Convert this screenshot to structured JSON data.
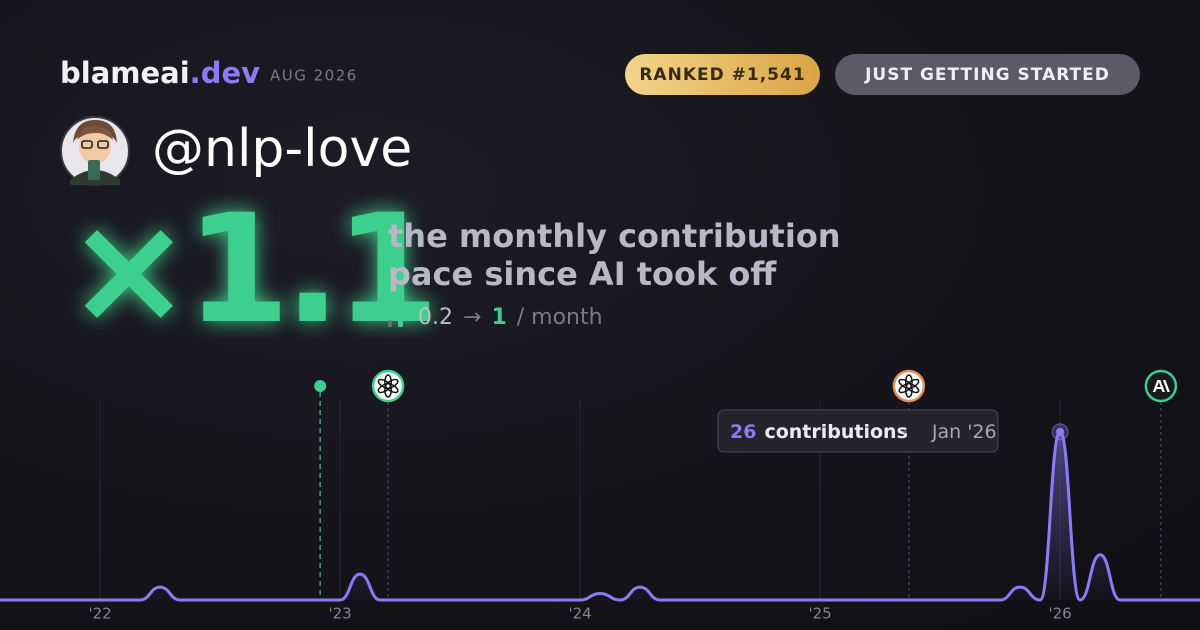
{
  "header": {
    "brand": "blameai",
    "brand_tld": ".dev",
    "period": "AUG 2026",
    "badges": [
      "RANKED #1,541",
      "JUST GETTING STARTED"
    ]
  },
  "profile": {
    "username": "@nlp-love"
  },
  "headline": {
    "multiplier": "×1.1",
    "description_lines": [
      "the monthly contribution",
      "pace since AI took off"
    ],
    "pace": {
      "from": 0.2,
      "arrow": "→",
      "to": 1,
      "unit": "/ month"
    }
  },
  "chart_data": {
    "type": "line",
    "x": [
      2021.583,
      2021.667,
      2021.75,
      2021.833,
      2021.917,
      2022,
      2022.083,
      2022.167,
      2022.25,
      2022.333,
      2022.417,
      2022.5,
      2022.583,
      2022.667,
      2022.75,
      2022.833,
      2022.917,
      2023,
      2023.083,
      2023.167,
      2023.25,
      2023.333,
      2023.417,
      2023.5,
      2023.583,
      2023.667,
      2023.75,
      2023.833,
      2023.917,
      2024,
      2024.083,
      2024.167,
      2024.25,
      2024.333,
      2024.417,
      2024.5,
      2024.583,
      2024.667,
      2024.75,
      2024.833,
      2024.917,
      2025,
      2025.083,
      2025.167,
      2025.25,
      2025.333,
      2025.417,
      2025.5,
      2025.583,
      2025.667,
      2025.75,
      2025.833,
      2025.917,
      2026,
      2026.083,
      2026.167,
      2026.25,
      2026.333,
      2026.417,
      2026.5,
      2026.583
    ],
    "series": [
      {
        "name": "contributions",
        "color": "#8b7cf6",
        "values": [
          0,
          0,
          0,
          0,
          0,
          0,
          0,
          0,
          2,
          0,
          0,
          0,
          0,
          0,
          0,
          0,
          0,
          0,
          4,
          0,
          0,
          0,
          0,
          0,
          0,
          0,
          0,
          0,
          0,
          0,
          1,
          0,
          2,
          0,
          0,
          0,
          0,
          0,
          0,
          0,
          0,
          0,
          0,
          0,
          0,
          0,
          0,
          0,
          0,
          0,
          0,
          2,
          0,
          26,
          0,
          7,
          0,
          0,
          0,
          0,
          0
        ]
      }
    ],
    "xlim": [
      2021.583,
      2026.583
    ],
    "xticks": [
      {
        "value": 2022,
        "label": "'22"
      },
      {
        "value": 2023,
        "label": "'23"
      },
      {
        "value": 2024,
        "label": "'24"
      },
      {
        "value": 2025,
        "label": "'25"
      },
      {
        "value": 2026,
        "label": "'26"
      }
    ],
    "ylim": [
      0,
      30
    ],
    "grid": true,
    "events": [
      {
        "x": 2022.917,
        "icon": "dot",
        "color": "#3ecf8e"
      },
      {
        "x": 2023.2,
        "icon": "openai",
        "color": "#3ecf8e"
      },
      {
        "x": 2025.37,
        "icon": "openai",
        "color": "#e0915a"
      },
      {
        "x": 2026.42,
        "icon": "anthropic",
        "color": "#3ecf8e"
      }
    ],
    "tooltip": {
      "label": "contributions",
      "date": "Jan '26"
    }
  }
}
